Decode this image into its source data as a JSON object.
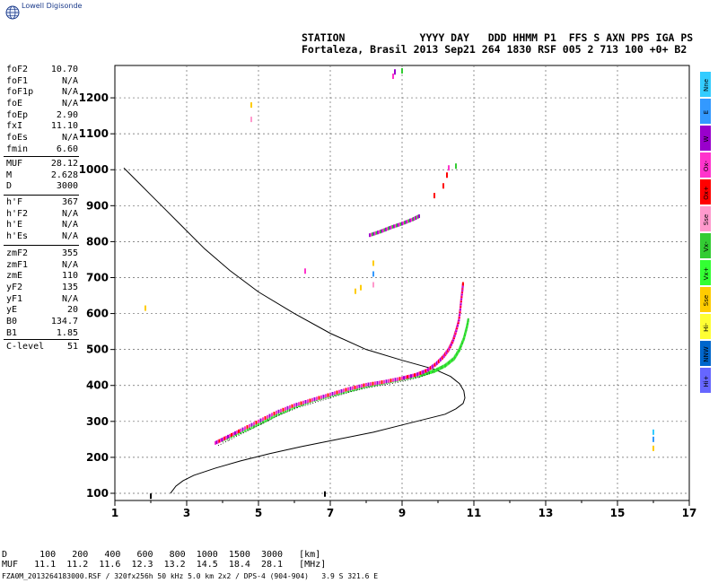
{
  "logo": {
    "icon": "globe-icon",
    "text": "Lowell Digisonde"
  },
  "header": {
    "line1": "STATION            YYYY DAY   DDD HHMM P1  FFS S AXN PPS IGA PS",
    "line2": "Fortaleza, Brasil 2013 Sep21 264 1830 RSF 005 2 713 100 +0+ B2"
  },
  "params": {
    "group1": [
      {
        "k": "foF2",
        "v": "10.70"
      },
      {
        "k": "foF1",
        "v": "N/A"
      },
      {
        "k": "foF1p",
        "v": "N/A"
      },
      {
        "k": "foE",
        "v": "N/A"
      },
      {
        "k": "foEp",
        "v": "2.90"
      },
      {
        "k": "fxI",
        "v": "11.10"
      },
      {
        "k": "foEs",
        "v": "N/A"
      },
      {
        "k": "fmin",
        "v": "6.60"
      }
    ],
    "group2": [
      {
        "k": "MUF",
        "v": "28.12"
      },
      {
        "k": "M",
        "v": "2.628"
      },
      {
        "k": "D",
        "v": "3000"
      }
    ],
    "group3": [
      {
        "k": "h'F",
        "v": "367"
      },
      {
        "k": "h'F2",
        "v": "N/A"
      },
      {
        "k": "h'E",
        "v": "N/A"
      },
      {
        "k": "h'Es",
        "v": "N/A"
      }
    ],
    "group4": [
      {
        "k": "zmF2",
        "v": "355"
      },
      {
        "k": "zmF1",
        "v": "N/A"
      },
      {
        "k": "zmE",
        "v": "110"
      },
      {
        "k": "yF2",
        "v": "135"
      },
      {
        "k": "yF1",
        "v": "N/A"
      },
      {
        "k": "yE",
        "v": "20"
      },
      {
        "k": "B0",
        "v": "134.7"
      },
      {
        "k": "B1",
        "v": "1.85"
      }
    ],
    "group5": [
      {
        "k": "C-level",
        "v": "51"
      }
    ]
  },
  "table": {
    "d_line": "D      100   200   400   600   800  1000  1500  3000   [km]",
    "muf_line": "MUF   11.1  11.2  11.6  12.3  13.2  14.5  18.4  28.1   [MHz]"
  },
  "footer": "FZA0M_2013264183000.RSF / 320fx256h 50 kHz 5.0 km 2x2 / DPS-4 (904-904)   3.9 S 321.6 E",
  "legend": [
    {
      "label": "Nne",
      "color": "#33ccff"
    },
    {
      "label": "E",
      "color": "#3399ff"
    },
    {
      "label": "W",
      "color": "#9900cc"
    },
    {
      "label": "Ox-",
      "color": "#ff33cc"
    },
    {
      "label": "Ox+",
      "color": "#ff0000"
    },
    {
      "label": "Sse",
      "color": "#ff99cc"
    },
    {
      "label": "Vx-",
      "color": "#33cc33"
    },
    {
      "label": "Vx+",
      "color": "#33ff33"
    },
    {
      "label": "Sse",
      "color": "#ffcc00"
    },
    {
      "label": "Hi-",
      "color": "#ffff33"
    },
    {
      "label": "NNW",
      "color": "#0066cc"
    },
    {
      "label": "Hi+",
      "color": "#6666ff"
    }
  ],
  "chart_data": {
    "type": "scatter",
    "xlim": [
      1,
      17
    ],
    "ylim": [
      80,
      1290
    ],
    "xticks": [
      1,
      3,
      5,
      7,
      9,
      11,
      13,
      15,
      17
    ],
    "yticks": [
      100,
      200,
      300,
      400,
      500,
      600,
      700,
      800,
      900,
      1000,
      1100,
      1200
    ],
    "grid": true,
    "profile_curve": {
      "x": [
        2.55,
        2.7,
        2.9,
        3.2,
        3.8,
        4.5,
        5.3,
        6.2,
        7.2,
        8.2,
        9.0,
        9.6,
        10.2,
        10.5,
        10.7,
        10.75,
        10.72,
        10.6,
        10.35,
        9.9,
        9.0,
        8.0,
        7.0,
        6.0,
        5.0,
        4.2,
        3.5,
        2.9,
        2.4,
        2.0,
        1.7,
        1.45,
        1.25
      ],
      "y": [
        100,
        120,
        135,
        150,
        170,
        190,
        210,
        230,
        250,
        270,
        290,
        305,
        320,
        335,
        350,
        365,
        385,
        405,
        425,
        445,
        470,
        500,
        545,
        600,
        660,
        720,
        780,
        840,
        890,
        930,
        960,
        985,
        1005
      ]
    },
    "o_trace": {
      "x": [
        3.8,
        4.1,
        4.5,
        5.0,
        5.5,
        6.0,
        6.5,
        7.0,
        7.5,
        8.0,
        8.5,
        9.0,
        9.4,
        9.7,
        9.95,
        10.15,
        10.3,
        10.42,
        10.5,
        10.58,
        10.62,
        10.65,
        10.68,
        10.7
      ],
      "y": [
        240,
        255,
        275,
        300,
        325,
        345,
        360,
        375,
        390,
        402,
        410,
        420,
        430,
        442,
        460,
        480,
        500,
        525,
        550,
        580,
        610,
        640,
        665,
        685
      ]
    },
    "x_trace": {
      "x": [
        4.0,
        4.5,
        5.0,
        5.5,
        6.0,
        6.5,
        7.0,
        7.5,
        8.0,
        8.5,
        9.0,
        9.5,
        9.9,
        10.2,
        10.45,
        10.6,
        10.72,
        10.8,
        10.85
      ],
      "y": [
        248,
        270,
        292,
        318,
        340,
        358,
        372,
        385,
        398,
        408,
        418,
        428,
        440,
        455,
        475,
        500,
        530,
        560,
        585
      ]
    },
    "upper_trace": {
      "x": [
        8.1,
        8.4,
        8.7,
        9.0,
        9.3,
        9.5
      ],
      "y": [
        818,
        828,
        840,
        850,
        862,
        872
      ]
    },
    "scatter_points": [
      {
        "x": 10.3,
        "y": 1005,
        "color": "#ff33cc"
      },
      {
        "x": 10.25,
        "y": 985,
        "color": "#ff0000"
      },
      {
        "x": 10.15,
        "y": 955,
        "color": "#ff0000"
      },
      {
        "x": 9.9,
        "y": 928,
        "color": "#ff0000"
      },
      {
        "x": 10.5,
        "y": 1010,
        "color": "#33cc33"
      },
      {
        "x": 8.75,
        "y": 1260,
        "color": "#ff33cc"
      },
      {
        "x": 8.8,
        "y": 1272,
        "color": "#9900cc"
      },
      {
        "x": 9.0,
        "y": 1275,
        "color": "#33cc33"
      },
      {
        "x": 4.8,
        "y": 1180,
        "color": "#ffcc00"
      },
      {
        "x": 4.8,
        "y": 1140,
        "color": "#ff99cc"
      },
      {
        "x": 6.3,
        "y": 718,
        "color": "#ff33cc"
      },
      {
        "x": 8.2,
        "y": 740,
        "color": "#ffcc00"
      },
      {
        "x": 8.2,
        "y": 710,
        "color": "#3399ff"
      },
      {
        "x": 8.2,
        "y": 680,
        "color": "#ff99cc"
      },
      {
        "x": 7.7,
        "y": 662,
        "color": "#ffcc00"
      },
      {
        "x": 7.85,
        "y": 672,
        "color": "#ffcc00"
      },
      {
        "x": 1.85,
        "y": 615,
        "color": "#ffcc00"
      },
      {
        "x": 16.0,
        "y": 270,
        "color": "#33ccff"
      },
      {
        "x": 16.0,
        "y": 250,
        "color": "#3399ff"
      },
      {
        "x": 16.0,
        "y": 225,
        "color": "#ffcc00"
      },
      {
        "x": 2.0,
        "y": 92,
        "color": "#000000"
      },
      {
        "x": 6.85,
        "y": 98,
        "color": "#000000"
      }
    ]
  }
}
